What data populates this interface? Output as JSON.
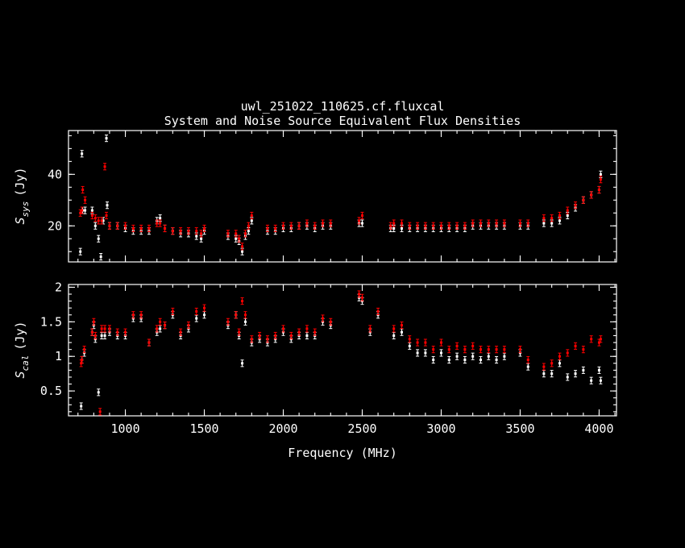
{
  "chart_data": [
    {
      "type": "scatter",
      "title": "uwl_251022_110625.cf.fluxcal",
      "subtitle": "System and Noise Source Equivalent Flux Densities",
      "ylabel_main": "S",
      "ylabel_sub": "sys",
      "ylabel_unit": "(Jy)",
      "xlim": [
        640,
        4110
      ],
      "ylim": [
        6,
        57
      ],
      "yticks": [
        20,
        40
      ],
      "xticks": [
        1000,
        1500,
        2000,
        2500,
        3000,
        3500,
        4000
      ],
      "series": [
        {
          "color": "#ffffff",
          "points": [
            [
              715,
              10
            ],
            [
              725,
              48
            ],
            [
              730,
              26
            ],
            [
              745,
              26
            ],
            [
              790,
              26
            ],
            [
              810,
              20
            ],
            [
              830,
              15
            ],
            [
              845,
              8
            ],
            [
              860,
              22
            ],
            [
              880,
              54
            ],
            [
              885,
              28
            ],
            [
              900,
              20
            ],
            [
              950,
              20
            ],
            [
              1000,
              19
            ],
            [
              1050,
              18
            ],
            [
              1100,
              18
            ],
            [
              1150,
              18
            ],
            [
              1200,
              22
            ],
            [
              1220,
              23
            ],
            [
              1250,
              19
            ],
            [
              1300,
              18
            ],
            [
              1350,
              17
            ],
            [
              1400,
              17
            ],
            [
              1450,
              16
            ],
            [
              1480,
              15
            ],
            [
              1500,
              18
            ],
            [
              1650,
              16
            ],
            [
              1700,
              15
            ],
            [
              1720,
              14
            ],
            [
              1740,
              10
            ],
            [
              1760,
              16
            ],
            [
              1780,
              18
            ],
            [
              1800,
              22
            ],
            [
              1900,
              18
            ],
            [
              1950,
              18
            ],
            [
              2000,
              19
            ],
            [
              2050,
              19
            ],
            [
              2100,
              20
            ],
            [
              2150,
              20
            ],
            [
              2200,
              19
            ],
            [
              2250,
              20
            ],
            [
              2300,
              20
            ],
            [
              2480,
              21
            ],
            [
              2500,
              21
            ],
            [
              2680,
              19
            ],
            [
              2700,
              19
            ],
            [
              2750,
              19
            ],
            [
              2800,
              19
            ],
            [
              2850,
              19
            ],
            [
              2900,
              19
            ],
            [
              2950,
              19
            ],
            [
              3000,
              19
            ],
            [
              3050,
              19
            ],
            [
              3100,
              19
            ],
            [
              3150,
              19
            ],
            [
              3200,
              20
            ],
            [
              3250,
              20
            ],
            [
              3300,
              20
            ],
            [
              3350,
              20
            ],
            [
              3400,
              20
            ],
            [
              3500,
              20
            ],
            [
              3550,
              20
            ],
            [
              3650,
              21
            ],
            [
              3700,
              21
            ],
            [
              3750,
              22
            ],
            [
              3800,
              24
            ],
            [
              3850,
              27
            ],
            [
              3900,
              30
            ],
            [
              3950,
              32
            ],
            [
              4000,
              34
            ],
            [
              4010,
              40
            ]
          ]
        },
        {
          "color": "#ff0000",
          "points": [
            [
              715,
              25
            ],
            [
              725,
              26
            ],
            [
              730,
              34
            ],
            [
              745,
              30
            ],
            [
              790,
              24
            ],
            [
              810,
              23
            ],
            [
              830,
              22
            ],
            [
              850,
              22
            ],
            [
              870,
              43
            ],
            [
              880,
              24
            ],
            [
              900,
              20
            ],
            [
              950,
              20
            ],
            [
              1000,
              20
            ],
            [
              1050,
              19
            ],
            [
              1100,
              19
            ],
            [
              1150,
              19
            ],
            [
              1200,
              21
            ],
            [
              1220,
              21
            ],
            [
              1250,
              19
            ],
            [
              1300,
              18
            ],
            [
              1350,
              18
            ],
            [
              1400,
              18
            ],
            [
              1450,
              18
            ],
            [
              1480,
              17
            ],
            [
              1500,
              19
            ],
            [
              1650,
              17
            ],
            [
              1700,
              17
            ],
            [
              1720,
              15
            ],
            [
              1740,
              12
            ],
            [
              1760,
              17
            ],
            [
              1780,
              20
            ],
            [
              1800,
              24
            ],
            [
              1900,
              19
            ],
            [
              1950,
              19
            ],
            [
              2000,
              20
            ],
            [
              2050,
              20
            ],
            [
              2100,
              20
            ],
            [
              2150,
              21
            ],
            [
              2200,
              20
            ],
            [
              2250,
              21
            ],
            [
              2300,
              21
            ],
            [
              2480,
              22
            ],
            [
              2500,
              24
            ],
            [
              2680,
              20
            ],
            [
              2700,
              21
            ],
            [
              2750,
              21
            ],
            [
              2800,
              20
            ],
            [
              2850,
              20
            ],
            [
              2900,
              20
            ],
            [
              2950,
              20
            ],
            [
              3000,
              20
            ],
            [
              3050,
              20
            ],
            [
              3100,
              20
            ],
            [
              3150,
              20
            ],
            [
              3200,
              21
            ],
            [
              3250,
              21
            ],
            [
              3300,
              21
            ],
            [
              3350,
              21
            ],
            [
              3400,
              21
            ],
            [
              3500,
              21
            ],
            [
              3550,
              21
            ],
            [
              3650,
              23
            ],
            [
              3700,
              23
            ],
            [
              3750,
              24
            ],
            [
              3800,
              26
            ],
            [
              3850,
              28
            ],
            [
              3900,
              30
            ],
            [
              3950,
              32
            ],
            [
              4000,
              34
            ],
            [
              4010,
              38
            ]
          ]
        }
      ]
    },
    {
      "type": "scatter",
      "ylabel_main": "S",
      "ylabel_sub": "cal",
      "ylabel_unit": "(Jy)",
      "xlabel": "Frequency (MHz)",
      "xlim": [
        640,
        4110
      ],
      "ylim": [
        0.14,
        2.04
      ],
      "yticks": [
        "0.5",
        "1",
        "1.5",
        "2"
      ],
      "xticks": [
        "1000",
        "1500",
        "2000",
        "2500",
        "3000",
        "3500",
        "4000"
      ],
      "series": [
        {
          "color": "#ffffff",
          "points": [
            [
              720,
              0.28
            ],
            [
              725,
              0.95
            ],
            [
              740,
              1.05
            ],
            [
              790,
              1.35
            ],
            [
              800,
              1.45
            ],
            [
              810,
              1.25
            ],
            [
              830,
              0.48
            ],
            [
              850,
              1.3
            ],
            [
              870,
              1.3
            ],
            [
              900,
              1.35
            ],
            [
              950,
              1.3
            ],
            [
              1000,
              1.3
            ],
            [
              1050,
              1.55
            ],
            [
              1100,
              1.55
            ],
            [
              1150,
              1.2
            ],
            [
              1200,
              1.35
            ],
            [
              1220,
              1.4
            ],
            [
              1250,
              1.45
            ],
            [
              1300,
              1.6
            ],
            [
              1350,
              1.3
            ],
            [
              1400,
              1.4
            ],
            [
              1450,
              1.55
            ],
            [
              1500,
              1.6
            ],
            [
              1650,
              1.45
            ],
            [
              1700,
              1.6
            ],
            [
              1720,
              1.3
            ],
            [
              1740,
              0.9
            ],
            [
              1760,
              1.5
            ],
            [
              1800,
              1.2
            ],
            [
              1850,
              1.25
            ],
            [
              1900,
              1.2
            ],
            [
              1950,
              1.25
            ],
            [
              2000,
              1.35
            ],
            [
              2050,
              1.25
            ],
            [
              2100,
              1.3
            ],
            [
              2150,
              1.3
            ],
            [
              2200,
              1.3
            ],
            [
              2250,
              1.5
            ],
            [
              2300,
              1.45
            ],
            [
              2480,
              1.85
            ],
            [
              2500,
              1.8
            ],
            [
              2550,
              1.35
            ],
            [
              2600,
              1.6
            ],
            [
              2700,
              1.3
            ],
            [
              2750,
              1.35
            ],
            [
              2800,
              1.15
            ],
            [
              2850,
              1.05
            ],
            [
              2900,
              1.05
            ],
            [
              2950,
              0.95
            ],
            [
              3000,
              1.05
            ],
            [
              3050,
              0.95
            ],
            [
              3100,
              1.0
            ],
            [
              3150,
              0.95
            ],
            [
              3200,
              1.0
            ],
            [
              3250,
              0.95
            ],
            [
              3300,
              1.0
            ],
            [
              3350,
              0.95
            ],
            [
              3400,
              1.0
            ],
            [
              3500,
              1.05
            ],
            [
              3550,
              0.85
            ],
            [
              3650,
              0.75
            ],
            [
              3700,
              0.75
            ],
            [
              3750,
              0.9
            ],
            [
              3800,
              0.7
            ],
            [
              3850,
              0.75
            ],
            [
              3900,
              0.8
            ],
            [
              3950,
              0.65
            ],
            [
              4000,
              0.8
            ],
            [
              4010,
              0.65
            ]
          ]
        },
        {
          "color": "#ff0000",
          "points": [
            [
              720,
              0.9
            ],
            [
              725,
              0.95
            ],
            [
              740,
              1.1
            ],
            [
              790,
              1.35
            ],
            [
              800,
              1.5
            ],
            [
              810,
              1.3
            ],
            [
              840,
              0.2
            ],
            [
              850,
              1.4
            ],
            [
              870,
              1.4
            ],
            [
              900,
              1.4
            ],
            [
              950,
              1.35
            ],
            [
              1000,
              1.35
            ],
            [
              1050,
              1.6
            ],
            [
              1100,
              1.6
            ],
            [
              1150,
              1.2
            ],
            [
              1200,
              1.4
            ],
            [
              1220,
              1.5
            ],
            [
              1250,
              1.45
            ],
            [
              1300,
              1.65
            ],
            [
              1350,
              1.35
            ],
            [
              1400,
              1.45
            ],
            [
              1450,
              1.65
            ],
            [
              1500,
              1.7
            ],
            [
              1650,
              1.5
            ],
            [
              1700,
              1.6
            ],
            [
              1720,
              1.35
            ],
            [
              1740,
              1.8
            ],
            [
              1760,
              1.6
            ],
            [
              1800,
              1.25
            ],
            [
              1850,
              1.3
            ],
            [
              1900,
              1.25
            ],
            [
              1950,
              1.3
            ],
            [
              2000,
              1.4
            ],
            [
              2050,
              1.3
            ],
            [
              2100,
              1.35
            ],
            [
              2150,
              1.4
            ],
            [
              2200,
              1.35
            ],
            [
              2250,
              1.55
            ],
            [
              2300,
              1.5
            ],
            [
              2480,
              1.9
            ],
            [
              2500,
              1.85
            ],
            [
              2550,
              1.4
            ],
            [
              2600,
              1.65
            ],
            [
              2700,
              1.4
            ],
            [
              2750,
              1.45
            ],
            [
              2800,
              1.25
            ],
            [
              2850,
              1.2
            ],
            [
              2900,
              1.2
            ],
            [
              2950,
              1.1
            ],
            [
              3000,
              1.2
            ],
            [
              3050,
              1.1
            ],
            [
              3100,
              1.15
            ],
            [
              3150,
              1.1
            ],
            [
              3200,
              1.15
            ],
            [
              3250,
              1.1
            ],
            [
              3300,
              1.1
            ],
            [
              3350,
              1.1
            ],
            [
              3400,
              1.1
            ],
            [
              3500,
              1.1
            ],
            [
              3550,
              0.95
            ],
            [
              3650,
              0.85
            ],
            [
              3700,
              0.9
            ],
            [
              3750,
              1.0
            ],
            [
              3800,
              1.05
            ],
            [
              3850,
              1.15
            ],
            [
              3900,
              1.1
            ],
            [
              3950,
              1.25
            ],
            [
              4000,
              1.2
            ],
            [
              4010,
              1.25
            ]
          ]
        }
      ]
    }
  ]
}
